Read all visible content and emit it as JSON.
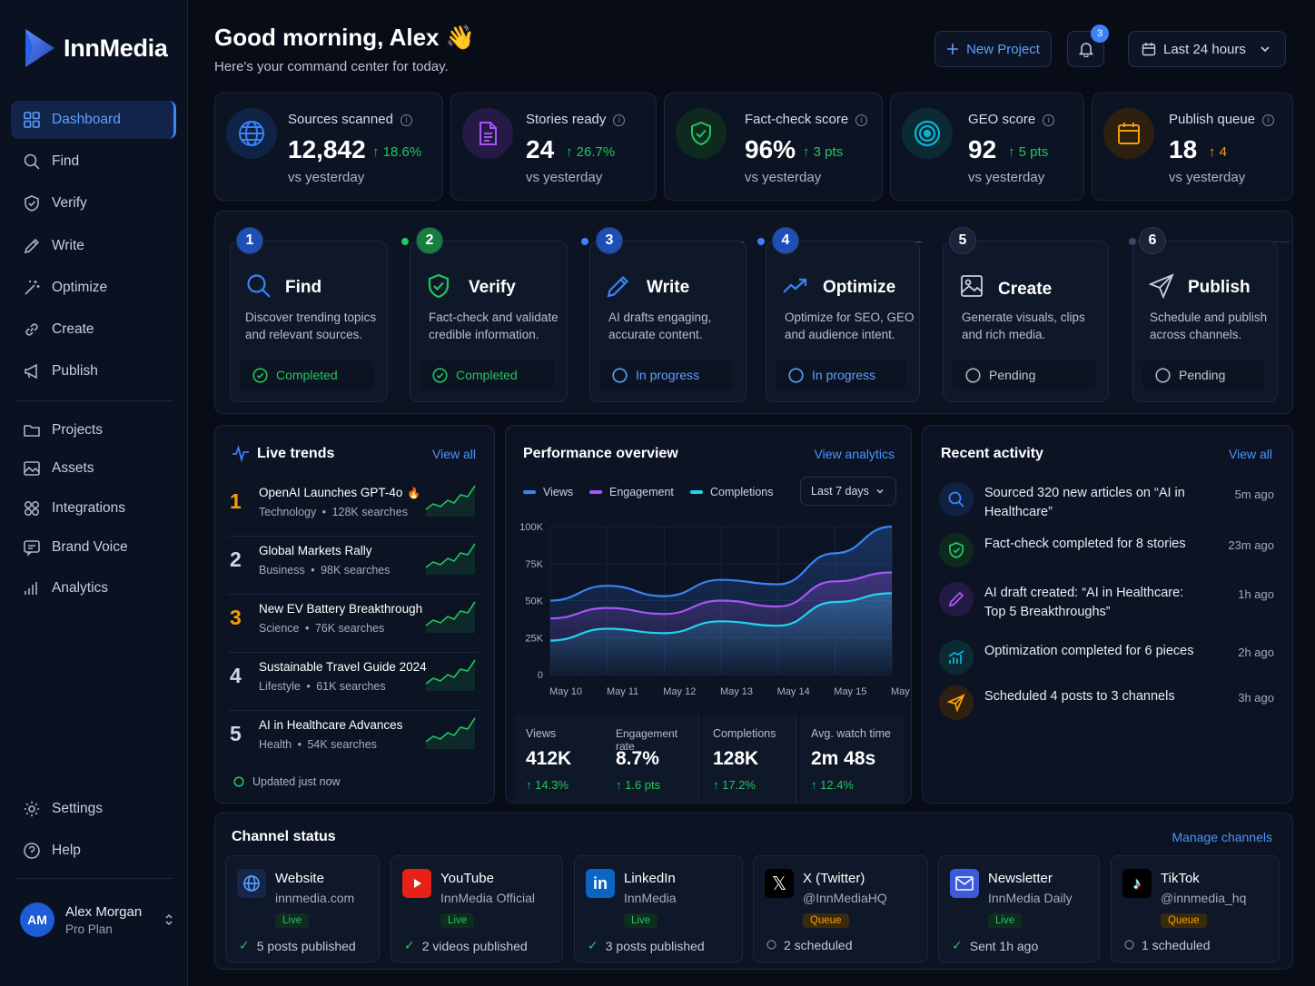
{
  "app": {
    "name": "InnMedia"
  },
  "sidebar": {
    "items": [
      {
        "label": "Dashboard",
        "icon": "grid-icon"
      },
      {
        "label": "Find",
        "icon": "search-icon"
      },
      {
        "label": "Verify",
        "icon": "shield-icon"
      },
      {
        "label": "Write",
        "icon": "pencil-icon"
      },
      {
        "label": "Optimize",
        "icon": "wand-icon"
      },
      {
        "label": "Create",
        "icon": "link-icon"
      },
      {
        "label": "Publish",
        "icon": "megaphone-icon"
      }
    ],
    "items2": [
      {
        "label": "Projects",
        "icon": "folder-icon"
      },
      {
        "label": "Assets",
        "icon": "image-icon"
      },
      {
        "label": "Integrations",
        "icon": "apps-icon"
      },
      {
        "label": "Brand Voice",
        "icon": "chat-icon"
      },
      {
        "label": "Analytics",
        "icon": "bars-icon"
      }
    ],
    "bottom": [
      {
        "label": "Settings",
        "icon": "gear-icon"
      },
      {
        "label": "Help",
        "icon": "help-icon"
      }
    ],
    "user": {
      "initials": "AM",
      "name": "Alex Morgan",
      "plan": "Pro Plan"
    }
  },
  "header": {
    "greeting": "Good morning, Alex",
    "emoji": "👋",
    "subtitle": "Here's your command center for today.",
    "new_project": "New Project",
    "notif_count": "3",
    "range": "Last 24 hours"
  },
  "stats": [
    {
      "label": "Sources scanned",
      "value": "12,842",
      "change": "18.6%",
      "sub": "vs yesterday",
      "color": "#3b82f6"
    },
    {
      "label": "Stories ready",
      "value": "24",
      "change": "26.7%",
      "sub": "vs yesterday",
      "color": "#a855f7"
    },
    {
      "label": "Fact-check score",
      "value": "96%",
      "change": "3 pts",
      "sub": "vs yesterday",
      "color": "#22c55e"
    },
    {
      "label": "GEO score",
      "value": "92",
      "change": "5 pts",
      "sub": "vs yesterday",
      "color": "#06b6d4"
    },
    {
      "label": "Publish queue",
      "value": "18",
      "change": "4",
      "sub": "vs yesterday",
      "color": "#f59e0b"
    }
  ],
  "pipeline": [
    {
      "num": "1",
      "title": "Find",
      "desc": "Discover trending topics and relevant sources.",
      "status": "Completed"
    },
    {
      "num": "2",
      "title": "Verify",
      "desc": "Fact-check and validate credible information.",
      "status": "Completed"
    },
    {
      "num": "3",
      "title": "Write",
      "desc": "AI drafts engaging, accurate content.",
      "status": "In progress"
    },
    {
      "num": "4",
      "title": "Optimize",
      "desc": "Optimize for SEO, GEO and audience intent.",
      "status": "In progress"
    },
    {
      "num": "5",
      "title": "Create",
      "desc": "Generate visuals, clips and rich media.",
      "status": "Pending"
    },
    {
      "num": "6",
      "title": "Publish",
      "desc": "Schedule and publish across channels.",
      "status": "Pending"
    }
  ],
  "trends": {
    "title": "Live trends",
    "view_all": "View all",
    "items": [
      {
        "rank": "1",
        "title": "OpenAI Launches GPT-4o",
        "category": "Technology",
        "searches": "128K searches",
        "hot": "🔥"
      },
      {
        "rank": "2",
        "title": "Global Markets Rally",
        "category": "Business",
        "searches": "98K searches"
      },
      {
        "rank": "3",
        "title": "New EV Battery Breakthrough",
        "category": "Science",
        "searches": "76K searches"
      },
      {
        "rank": "4",
        "title": "Sustainable Travel Guide 2024",
        "category": "Lifestyle",
        "searches": "61K searches"
      },
      {
        "rank": "5",
        "title": "AI in Healthcare Advances",
        "category": "Health",
        "searches": "54K searches"
      }
    ],
    "updated": "Updated just now"
  },
  "performance": {
    "title": "Performance overview",
    "link": "View analytics",
    "range": "Last 7 days",
    "metrics": [
      {
        "label": "Views",
        "value": "412K",
        "change": "14.3%"
      },
      {
        "label": "Engagement rate",
        "value": "8.7%",
        "change": "1.6 pts"
      },
      {
        "label": "Completions",
        "value": "128K",
        "change": "17.2%"
      },
      {
        "label": "Avg. watch time",
        "value": "2m 48s",
        "change": "12.4%"
      }
    ]
  },
  "chart_data": {
    "type": "area",
    "x": [
      "May 10",
      "May 11",
      "May 12",
      "May 13",
      "May 14",
      "May 15",
      "May 16"
    ],
    "y_ticks": [
      "100K",
      "75K",
      "50K",
      "25K",
      "0"
    ],
    "ylim": [
      0,
      100000
    ],
    "series": [
      {
        "name": "Views",
        "color": "#3b82f6",
        "values": [
          50000,
          60000,
          53000,
          64000,
          61000,
          82000,
          100000
        ]
      },
      {
        "name": "Engagement",
        "color": "#a855f7",
        "values": [
          38000,
          45000,
          41000,
          50000,
          46000,
          63000,
          69000
        ]
      },
      {
        "name": "Completions",
        "color": "#22d3ee",
        "values": [
          23000,
          31000,
          28000,
          36000,
          33000,
          49000,
          55000
        ]
      }
    ]
  },
  "activity": {
    "title": "Recent activity",
    "view_all": "View all",
    "items": [
      {
        "text": "Sourced 320 new articles on “AI in Healthcare”",
        "time": "5m ago",
        "icon": "search-icon",
        "color": "#3b82f6"
      },
      {
        "text": "Fact-check completed for 8 stories",
        "time": "23m ago",
        "icon": "shield-icon",
        "color": "#22c55e"
      },
      {
        "text": "AI draft created: “AI in Healthcare: Top 5 Breakthroughs”",
        "time": "1h ago",
        "icon": "pencil-icon",
        "color": "#a855f7"
      },
      {
        "text": "Optimization completed for 6 pieces",
        "time": "2h ago",
        "icon": "chart-icon",
        "color": "#06b6d4"
      },
      {
        "text": "Scheduled 4 posts to 3 channels",
        "time": "3h ago",
        "icon": "send-icon",
        "color": "#f59e0b"
      }
    ]
  },
  "channels": {
    "title": "Channel status",
    "manage": "Manage channels",
    "items": [
      {
        "name": "Website",
        "handle": "innmedia.com",
        "status": "Live",
        "foot": "5 posts published",
        "icon": "globe-icon"
      },
      {
        "name": "YouTube",
        "handle": "InnMedia Official",
        "status": "Live",
        "foot": "2 videos published",
        "icon": "youtube-icon"
      },
      {
        "name": "LinkedIn",
        "handle": "InnMedia",
        "status": "Live",
        "foot": "3 posts published",
        "icon": "linkedin-icon"
      },
      {
        "name": "X (Twitter)",
        "handle": "@InnMediaHQ",
        "status": "Queue",
        "foot": "2 scheduled",
        "icon": "x-icon"
      },
      {
        "name": "Newsletter",
        "handle": "InnMedia Daily",
        "status": "Live",
        "foot": "Sent 1h ago",
        "icon": "mail-icon"
      },
      {
        "name": "TikTok",
        "handle": "@innmedia_hq",
        "status": "Queue",
        "foot": "1 scheduled",
        "icon": "tiktok-icon"
      }
    ]
  }
}
